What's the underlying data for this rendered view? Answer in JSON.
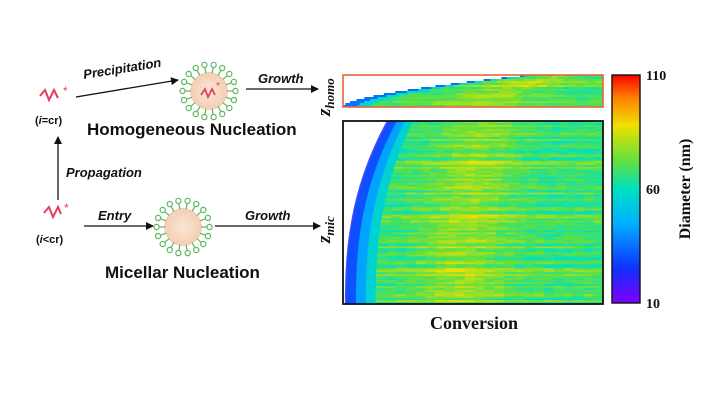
{
  "scheme": {
    "species_top": {
      "prefix": "(",
      "italic": "i",
      "suffix": "=cr)"
    },
    "species_bottom": {
      "prefix": "(",
      "italic": "i",
      "suffix": "<cr)"
    },
    "precipitation_label": "Precipitation",
    "propagation_label": "Propagation",
    "entry_label": "Entry",
    "growth_label_top": "Growth",
    "growth_label_bottom": "Growth",
    "homogeneous_title": "Homogeneous Nucleation",
    "micellar_title": "Micellar Nucleation",
    "z_homo": {
      "main": "z",
      "sub": "homo"
    },
    "z_mic": {
      "main": "z",
      "sub": "mic"
    },
    "radical_marker": "*"
  },
  "colors": {
    "chain": "#e0405f",
    "micelle_core": "#f8d9c4",
    "micelle_shell": "#5cb85c",
    "top_panel_border": "#e8643c",
    "bottom_panel_border": "#111111"
  },
  "chart_data": {
    "type": "heatmap",
    "xlabel": "Conversion",
    "colorbar": {
      "label": "Diameter (nm)",
      "ticks": [
        110,
        60,
        10
      ],
      "range": [
        10,
        110
      ],
      "colormap": "jet"
    },
    "panels": [
      {
        "name": "z_homo",
        "border_color": "#e8643c"
      },
      {
        "name": "z_mic",
        "border_color": "#111111"
      }
    ]
  }
}
